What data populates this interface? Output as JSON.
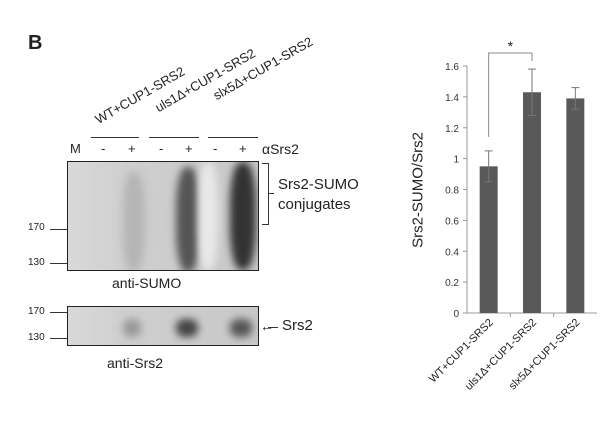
{
  "panel_label": "B",
  "blot": {
    "strains": [
      "WT+CUP1-SRS2",
      "uls1Δ+CUP1-SRS2",
      "slx5Δ+CUP1-SRS2"
    ],
    "lane_marker": "M",
    "lane_signs": [
      "-",
      "+",
      "-",
      "+",
      "-",
      "+"
    ],
    "ip_label": "αSrs2",
    "top_panel": {
      "mw_markers": [
        "170",
        "130"
      ],
      "bracket_label_line1": "Srs2-SUMO",
      "bracket_label_line2": "conjugates",
      "caption": "anti-SUMO"
    },
    "bottom_panel": {
      "mw_markers": [
        "170",
        "130"
      ],
      "arrow_label": "Srs2",
      "caption": "anti-Srs2"
    }
  },
  "chart_data": {
    "type": "bar",
    "categories": [
      "WT+CUP1-SRS2",
      "uls1Δ+CUP1-SRS2",
      "slx5Δ+CUP1-SRS2"
    ],
    "values": [
      0.95,
      1.43,
      1.39
    ],
    "errors": [
      0.1,
      0.15,
      0.07
    ],
    "ylabel": "Srs2-SUMO/Srs2",
    "xlabel": "",
    "ylim": [
      0,
      1.6
    ],
    "yticks": [
      "0",
      "0.2",
      "0.4",
      "0.6",
      "0.8",
      "1",
      "1.2",
      "1.4",
      "1.6"
    ],
    "significance": {
      "between": [
        0,
        1
      ],
      "label": "*"
    },
    "bar_color": "#595959",
    "grid": false
  }
}
